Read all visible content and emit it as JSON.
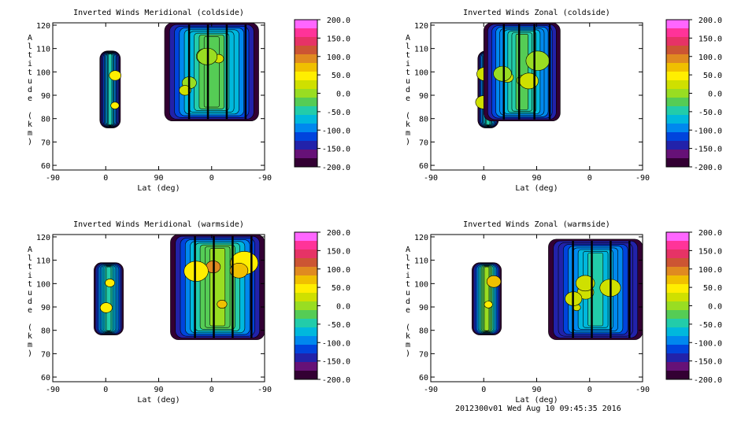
{
  "footer": "2012300v01 Wed Aug 10 09:45:35 2016",
  "colorbar": {
    "labels": [
      "200.0",
      "150.0",
      "100.0",
      "50.0",
      "0.0",
      "-50.0",
      "-100.0",
      "-150.0",
      "-200.0"
    ],
    "colors": [
      "#ff66ff",
      "#ff3399",
      "#e63366",
      "#cc5533",
      "#e08a20",
      "#f0c000",
      "#ffee00",
      "#cfe000",
      "#99dd22",
      "#55cc55",
      "#22ccaa",
      "#00b8dd",
      "#0088ee",
      "#0044dd",
      "#2222aa",
      "#661177",
      "#330033"
    ]
  },
  "chart_data": [
    {
      "type": "heatmap",
      "title": "Inverted Winds Meridional (coldside)",
      "xlabel": "Lat (deg)",
      "ylabel": "Altitude (km)",
      "xticks": [
        "-90",
        "0",
        "90",
        "0",
        "-90"
      ],
      "yticks": [
        "60",
        "70",
        "80",
        "90",
        "100",
        "110",
        "120"
      ],
      "ylim": [
        58,
        121
      ],
      "colorbar_range": [
        -200,
        200
      ],
      "regions": [
        {
          "x_range": [
            -10,
            25
          ],
          "alt_range": [
            76,
            109
          ],
          "mean_wind_approx": -60,
          "peak_wind_approx": 80
        },
        {
          "x_range": [
            100,
            260
          ],
          "alt_range": [
            79,
            121
          ],
          "mean_wind_approx": -20,
          "peak_wind_approx": 20
        }
      ]
    },
    {
      "type": "heatmap",
      "title": "Inverted Winds Zonal (coldside)",
      "xlabel": "Lat (deg)",
      "ylabel": "Altitude (km)",
      "xticks": [
        "-90",
        "0",
        "90",
        "0",
        "-90"
      ],
      "yticks": [
        "60",
        "70",
        "80",
        "90",
        "100",
        "110",
        "120"
      ],
      "ylim": [
        58,
        121
      ],
      "colorbar_range": [
        -200,
        200
      ],
      "regions": [
        {
          "x_range": [
            -10,
            25
          ],
          "alt_range": [
            76,
            109
          ],
          "mean_wind_approx": -40,
          "peak_wind_approx": 60
        },
        {
          "x_range": [
            0,
            130
          ],
          "alt_range": [
            79,
            121
          ],
          "mean_wind_approx": -30,
          "peak_wind_approx": 30
        }
      ]
    },
    {
      "type": "heatmap",
      "title": "Inverted Winds Meridional (warmside)",
      "xlabel": "Lat (deg)",
      "ylabel": "Altitude (km)",
      "xticks": [
        "-90",
        "0",
        "90",
        "0",
        "-90"
      ],
      "yticks": [
        "60",
        "70",
        "80",
        "90",
        "100",
        "110",
        "120"
      ],
      "ylim": [
        58,
        121
      ],
      "colorbar_range": [
        -200,
        200
      ],
      "regions": [
        {
          "x_range": [
            -20,
            30
          ],
          "alt_range": [
            78,
            109
          ],
          "mean_wind_approx": -40,
          "peak_wind_approx": 50
        },
        {
          "x_range": [
            110,
            270
          ],
          "alt_range": [
            76,
            121
          ],
          "mean_wind_approx": 0,
          "peak_wind_approx": 100
        }
      ]
    },
    {
      "type": "heatmap",
      "title": "Inverted Winds Zonal (warmside)",
      "xlabel": "Lat (deg)",
      "ylabel": "Altitude (km)",
      "xticks": [
        "-90",
        "0",
        "90",
        "0",
        "-90"
      ],
      "yticks": [
        "60",
        "70",
        "80",
        "90",
        "100",
        "110",
        "120"
      ],
      "ylim": [
        58,
        121
      ],
      "colorbar_range": [
        -200,
        200
      ],
      "regions": [
        {
          "x_range": [
            -20,
            30
          ],
          "alt_range": [
            78,
            109
          ],
          "mean_wind_approx": 0,
          "peak_wind_approx": 80
        },
        {
          "x_range": [
            110,
            270
          ],
          "alt_range": [
            76,
            119
          ],
          "mean_wind_approx": -60,
          "peak_wind_approx": 50
        }
      ]
    }
  ]
}
